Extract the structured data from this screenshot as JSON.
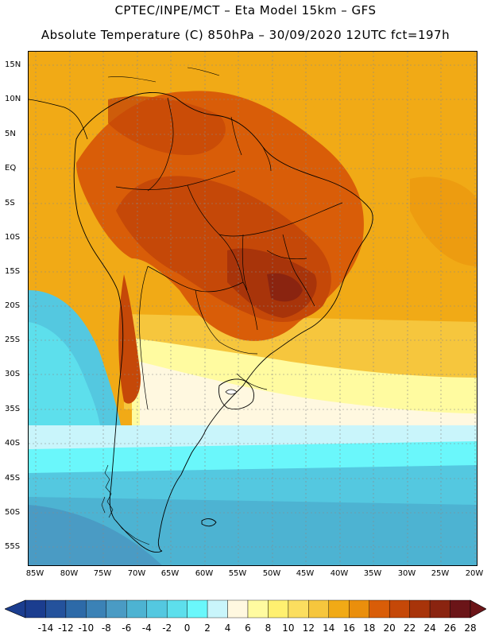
{
  "header": {
    "line1": "CPTEC/INPE/MCT –  Eta Model 15km – GFS",
    "line2": "Absolute Temperature (C) 850hPa – 30/09/2020 12UTC fct=197h"
  },
  "map": {
    "lat_labels": [
      "15N",
      "10N",
      "5N",
      "EQ",
      "5S",
      "10S",
      "15S",
      "20S",
      "25S",
      "30S",
      "35S",
      "40S",
      "45S",
      "50S",
      "55S"
    ],
    "lon_labels": [
      "85W",
      "80W",
      "75W",
      "70W",
      "65W",
      "60W",
      "55W",
      "50W",
      "45W",
      "40W",
      "35W",
      "30W",
      "25W",
      "20W"
    ]
  },
  "legend": {
    "labels": [
      "-14",
      "-12",
      "-10",
      "-8",
      "-6",
      "-4",
      "-2",
      "0",
      "2",
      "4",
      "6",
      "8",
      "10",
      "12",
      "14",
      "16",
      "18",
      "20",
      "22",
      "24",
      "26",
      "28"
    ],
    "colors": [
      "#1b3d8f",
      "#24529c",
      "#2d6aa8",
      "#3b82b6",
      "#4a9bc4",
      "#4db3d2",
      "#54c8e0",
      "#5ddfec",
      "#6af7fb",
      "#c9f5fb",
      "#fff8e0",
      "#fffba0",
      "#fff070",
      "#fbde5f",
      "#f6c63d",
      "#f1aa16",
      "#ea8f0c",
      "#d95d08",
      "#c54808",
      "#a8340a",
      "#8a2410",
      "#6b1518"
    ]
  },
  "colors": {
    "border": "#000000",
    "grid": "#888888"
  }
}
